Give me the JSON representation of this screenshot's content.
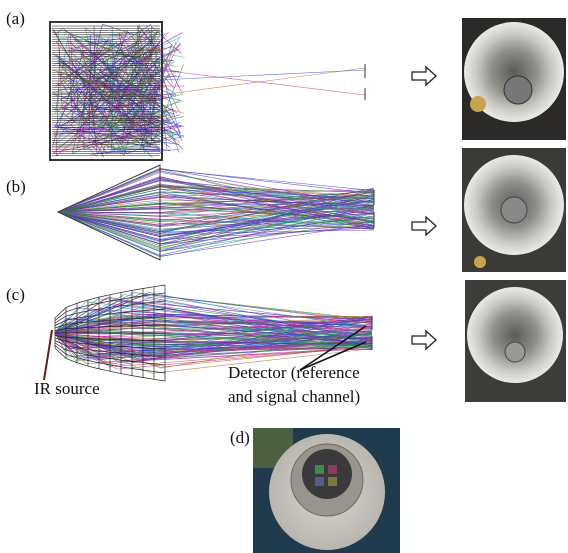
{
  "panels": [
    {
      "label": "(a)"
    },
    {
      "label": "(b)"
    },
    {
      "label": "(c)"
    },
    {
      "label": "(d)"
    }
  ],
  "annotations": {
    "ir_source": "IR source",
    "detector": [
      "Detector (reference",
      "and signal channel)"
    ]
  }
}
